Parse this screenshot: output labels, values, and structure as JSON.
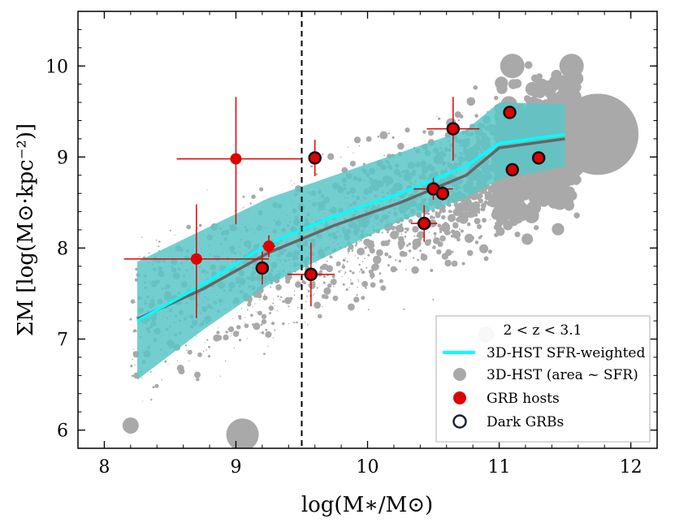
{
  "chart_data": {
    "type": "scatter",
    "xlabel": "log(M∗/M⊙)",
    "ylabel": "ΣM [log(M⊙·kpc⁻²)]",
    "xlim": [
      7.8,
      12.2
    ],
    "ylim": [
      5.8,
      10.6
    ],
    "x_ticks": [
      8,
      9,
      10,
      11,
      12
    ],
    "x_tick_labels": [
      "8",
      "9",
      "10",
      "11",
      "12"
    ],
    "y_ticks": [
      6,
      7,
      8,
      9,
      10
    ],
    "y_tick_labels": [
      "6",
      "7",
      "8",
      "9",
      "10"
    ],
    "vertical_line_x": 9.5,
    "legend": {
      "placement": "lower-right",
      "title": "2 < z < 3.1",
      "entries": [
        "3D-HST SFR-weighted",
        "3D-HST (area ~ SFR)",
        "GRB hosts",
        "Dark GRBs"
      ]
    },
    "series": [
      {
        "name": "3D-HST SFR-weighted",
        "type": "line",
        "color": "#00ffff",
        "x": [
          8.25,
          8.75,
          9.25,
          9.75,
          10.25,
          10.75,
          11.0,
          11.5
        ],
        "y": [
          7.2,
          7.6,
          8.05,
          8.35,
          8.6,
          8.9,
          9.15,
          9.25
        ]
      },
      {
        "name": "median",
        "type": "line",
        "color": "#666666",
        "x": [
          8.25,
          8.75,
          9.25,
          9.75,
          10.25,
          10.75,
          11.0,
          11.5
        ],
        "y": [
          7.22,
          7.55,
          7.95,
          8.25,
          8.5,
          8.8,
          9.1,
          9.2
        ]
      },
      {
        "name": "SFR-weighted band",
        "type": "band",
        "color": "#5bc7c7",
        "x": [
          8.25,
          8.75,
          9.25,
          9.75,
          10.25,
          10.75,
          11.0,
          11.5
        ],
        "low": [
          6.55,
          7.1,
          7.6,
          7.95,
          8.3,
          8.55,
          8.75,
          8.9
        ],
        "high": [
          7.85,
          8.2,
          8.55,
          8.8,
          9.05,
          9.3,
          9.6,
          9.58
        ]
      },
      {
        "name": "GRB hosts",
        "type": "errorbar",
        "color": "#e00000",
        "points": [
          {
            "x": 8.7,
            "y": 7.88,
            "xerr": 0.55,
            "yerr": [
              0.65,
              0.6
            ],
            "dark": false
          },
          {
            "x": 9.0,
            "y": 8.98,
            "xerr": [
              0.45,
              0.5
            ],
            "yerr": [
              0.72,
              0.68
            ],
            "dark": false
          },
          {
            "x": 9.25,
            "y": 8.02,
            "xerr": 0.05,
            "yerr": 0.12,
            "dark": false
          },
          {
            "x": 9.2,
            "y": 7.78,
            "xerr": 0.05,
            "yerr": 0.18,
            "dark": true
          },
          {
            "x": 9.57,
            "y": 7.71,
            "xerr": 0.18,
            "yerr": 0.35,
            "dark": true
          },
          {
            "x": 9.6,
            "y": 8.99,
            "xerr": 0.05,
            "yerr": 0.2,
            "dark": true
          },
          {
            "x": 10.43,
            "y": 8.27,
            "xerr": 0.1,
            "yerr": 0.2,
            "dark": true
          },
          {
            "x": 10.5,
            "y": 8.65,
            "xerr": 0.15,
            "yerr": 0.12,
            "dark": true
          },
          {
            "x": 10.57,
            "y": 8.6,
            "xerr": 0.05,
            "yerr": 0.08,
            "dark": true
          },
          {
            "x": 10.65,
            "y": 9.31,
            "xerr": 0.2,
            "yerr": 0.35,
            "dark": true
          },
          {
            "x": 11.08,
            "y": 9.49,
            "xerr": 0.02,
            "yerr": 0.05,
            "dark": true
          },
          {
            "x": 11.1,
            "y": 8.86,
            "xerr": 0.03,
            "yerr": 0.05,
            "dark": true
          },
          {
            "x": 11.3,
            "y": 8.99,
            "xerr": 0.03,
            "yerr": 0.05,
            "dark": true
          }
        ]
      },
      {
        "name": "3D-HST (area ~ SFR)",
        "type": "scatter",
        "color": "#a9a9a9",
        "highlighted_points": [
          {
            "x": 11.75,
            "y": 9.25,
            "size": 10
          },
          {
            "x": 9.05,
            "y": 5.95,
            "size": 4
          },
          {
            "x": 11.55,
            "y": 10.0,
            "size": 3
          },
          {
            "x": 11.1,
            "y": 10.0,
            "size": 3
          },
          {
            "x": 8.2,
            "y": 6.05,
            "size": 2
          },
          {
            "x": 10.9,
            "y": 7.05,
            "size": 2
          },
          {
            "x": 11.3,
            "y": 9.4,
            "size": 3
          }
        ]
      }
    ]
  }
}
